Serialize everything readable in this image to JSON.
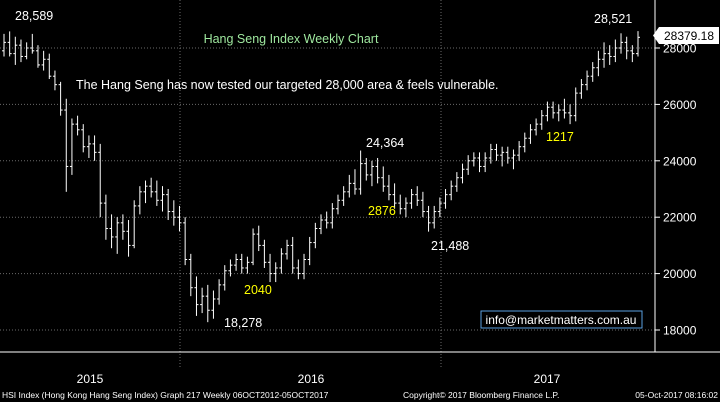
{
  "chart_data": {
    "type": "ohlc",
    "title": "Hang Seng Index Weekly Chart",
    "subtitle": "The Hang Seng has now tested our targeted 28,000 area & feels vulnerable.",
    "xlabel": "",
    "ylabel": "",
    "ylim": [
      17600,
      29200
    ],
    "y_ticks": [
      18000,
      20000,
      22000,
      24000,
      26000,
      28000
    ],
    "y_tick_labels": [
      "18000",
      "20000",
      "22000",
      "24000",
      "26000",
      "28000"
    ],
    "x_ticks": [
      "2015",
      "2016",
      "2017"
    ],
    "last_price": "28379.18",
    "grid": true,
    "series": [
      {
        "color": "#ffffff",
        "ohlc": [
          [
            27900,
            28500,
            27700,
            28200
          ],
          [
            28200,
            28589,
            27700,
            27800
          ],
          [
            27800,
            28400,
            27400,
            28100
          ],
          [
            28100,
            28300,
            27500,
            27700
          ],
          [
            27700,
            28200,
            27600,
            28000
          ],
          [
            28000,
            28500,
            27800,
            27900
          ],
          [
            27900,
            28100,
            27300,
            27400
          ],
          [
            27400,
            27900,
            27200,
            27600
          ],
          [
            27600,
            27800,
            26900,
            27000
          ],
          [
            27000,
            27200,
            26500,
            26700
          ],
          [
            26700,
            26800,
            25600,
            25800
          ],
          [
            25800,
            26200,
            22900,
            23800
          ],
          [
            23800,
            25500,
            23500,
            25300
          ],
          [
            25300,
            25600,
            24900,
            25100
          ],
          [
            25100,
            25300,
            24300,
            24500
          ],
          [
            24500,
            24900,
            24100,
            24600
          ],
          [
            24600,
            24900,
            24000,
            24300
          ],
          [
            24300,
            24600,
            22000,
            22500
          ],
          [
            22500,
            22800,
            21200,
            21600
          ],
          [
            21600,
            22100,
            20900,
            21300
          ],
          [
            21300,
            22000,
            20700,
            21800
          ],
          [
            21800,
            22100,
            21200,
            21500
          ],
          [
            21500,
            21900,
            20600,
            21000
          ],
          [
            21000,
            22600,
            20900,
            22400
          ],
          [
            22400,
            23100,
            22100,
            22900
          ],
          [
            22900,
            23300,
            22500,
            23100
          ],
          [
            23100,
            23400,
            22700,
            22900
          ],
          [
            22900,
            23300,
            22400,
            22600
          ],
          [
            22600,
            23100,
            22200,
            22800
          ],
          [
            22800,
            23000,
            21900,
            22200
          ],
          [
            22200,
            22600,
            21700,
            22000
          ],
          [
            22000,
            22400,
            21500,
            21800
          ],
          [
            21800,
            22000,
            20300,
            20500
          ],
          [
            20500,
            20700,
            19200,
            19500
          ],
          [
            19500,
            19900,
            18500,
            18900
          ],
          [
            18900,
            19500,
            18600,
            19200
          ],
          [
            19200,
            19600,
            18278,
            18700
          ],
          [
            18700,
            19400,
            18400,
            19100
          ],
          [
            19100,
            19800,
            18900,
            19600
          ],
          [
            19600,
            20300,
            19400,
            20100
          ],
          [
            20100,
            20500,
            19900,
            20300
          ],
          [
            20300,
            20700,
            20100,
            20500
          ],
          [
            20500,
            20700,
            20000,
            20200
          ],
          [
            20200,
            20600,
            20000,
            20400
          ],
          [
            20400,
            21600,
            20300,
            21400
          ],
          [
            21400,
            21700,
            20800,
            21000
          ],
          [
            21000,
            21200,
            20200,
            20400
          ],
          [
            20400,
            20700,
            19700,
            20000
          ],
          [
            20000,
            20400,
            19700,
            20200
          ],
          [
            20200,
            20900,
            20000,
            20700
          ],
          [
            20700,
            21200,
            20500,
            21000
          ],
          [
            21000,
            21300,
            20000,
            20200
          ],
          [
            20200,
            20500,
            19800,
            20000
          ],
          [
            20000,
            20700,
            19800,
            20500
          ],
          [
            20500,
            21300,
            20300,
            21100
          ],
          [
            21100,
            21800,
            20900,
            21600
          ],
          [
            21600,
            22100,
            21400,
            21900
          ],
          [
            21900,
            22200,
            21600,
            21800
          ],
          [
            21800,
            22500,
            21600,
            22300
          ],
          [
            22300,
            22800,
            22100,
            22600
          ],
          [
            22600,
            23100,
            22400,
            22900
          ],
          [
            22900,
            23500,
            22700,
            23200
          ],
          [
            23200,
            23700,
            22800,
            23000
          ],
          [
            23000,
            24364,
            22800,
            23900
          ],
          [
            23900,
            24100,
            23300,
            23500
          ],
          [
            23500,
            24000,
            23100,
            23800
          ],
          [
            23800,
            24100,
            23200,
            23400
          ],
          [
            23400,
            23800,
            22900,
            23100
          ],
          [
            23100,
            23500,
            22600,
            22800
          ],
          [
            22800,
            23200,
            22300,
            22500
          ],
          [
            22500,
            22800,
            22100,
            22300
          ],
          [
            22300,
            22700,
            22000,
            22500
          ],
          [
            22500,
            23000,
            22300,
            22800
          ],
          [
            22800,
            23100,
            22400,
            22600
          ],
          [
            22600,
            22900,
            22000,
            22200
          ],
          [
            22200,
            22400,
            21488,
            21800
          ],
          [
            21800,
            22400,
            21600,
            22200
          ],
          [
            22200,
            22700,
            22000,
            22500
          ],
          [
            22500,
            23000,
            22300,
            22800
          ],
          [
            22800,
            23300,
            22600,
            23100
          ],
          [
            23100,
            23600,
            22900,
            23400
          ],
          [
            23400,
            23900,
            23200,
            23700
          ],
          [
            23700,
            24200,
            23500,
            24000
          ],
          [
            24000,
            24300,
            23800,
            24100
          ],
          [
            24100,
            24300,
            23600,
            23800
          ],
          [
            23800,
            24300,
            23600,
            24100
          ],
          [
            24100,
            24600,
            23900,
            24400
          ],
          [
            24400,
            24600,
            24000,
            24200
          ],
          [
            24200,
            24500,
            23800,
            24300
          ],
          [
            24300,
            24500,
            23900,
            24100
          ],
          [
            24100,
            24400,
            23700,
            24200
          ],
          [
            24200,
            24700,
            24000,
            24500
          ],
          [
            24500,
            25000,
            24300,
            24800
          ],
          [
            24800,
            25300,
            24600,
            25100
          ],
          [
            25100,
            25500,
            24900,
            25300
          ],
          [
            25300,
            25800,
            25100,
            25600
          ],
          [
            25600,
            26100,
            25400,
            25900
          ],
          [
            25900,
            26100,
            25500,
            25700
          ],
          [
            25700,
            26000,
            25400,
            25800
          ],
          [
            25800,
            26200,
            25500,
            25700
          ],
          [
            25700,
            26000,
            25300,
            25600
          ],
          [
            25600,
            26600,
            25400,
            26400
          ],
          [
            26400,
            26900,
            26200,
            26700
          ],
          [
            26700,
            27200,
            26500,
            27000
          ],
          [
            27000,
            27500,
            26800,
            27300
          ],
          [
            27300,
            27900,
            27000,
            27600
          ],
          [
            27600,
            28200,
            27300,
            27800
          ],
          [
            27800,
            28100,
            27400,
            27700
          ],
          [
            27700,
            28300,
            27500,
            28000
          ],
          [
            28000,
            28521,
            27800,
            28200
          ],
          [
            28200,
            28400,
            27600,
            27900
          ],
          [
            27900,
            28100,
            27500,
            27800
          ],
          [
            27800,
            28600,
            27700,
            28379
          ]
        ]
      }
    ],
    "annotations": [
      {
        "text": "28,589",
        "color": "#ffffff"
      },
      {
        "text": "18,278",
        "color": "#ffffff"
      },
      {
        "text": "2040",
        "color": "#ffff00"
      },
      {
        "text": "24,364",
        "color": "#ffffff"
      },
      {
        "text": "2876",
        "color": "#ffff00"
      },
      {
        "text": "21,488",
        "color": "#ffffff"
      },
      {
        "text": "1217",
        "color": "#ffff00"
      },
      {
        "text": "28,521",
        "color": "#ffffff"
      }
    ]
  },
  "contact": "info@marketmatters.com.au",
  "footer": {
    "left": "HSI Index (Hong Kong Hang Seng Index) Graph 217  Weekly 06OCT2012-05OCT2017",
    "center": "Copyright© 2017 Bloomberg Finance L.P.",
    "right": "05-Oct-2017 08:16:02"
  },
  "colors": {
    "background": "#000000",
    "title": "#9fe89f",
    "grid": "#6a6a6a",
    "highlight": "#ffff00",
    "link_box": "#5aa0e0"
  }
}
